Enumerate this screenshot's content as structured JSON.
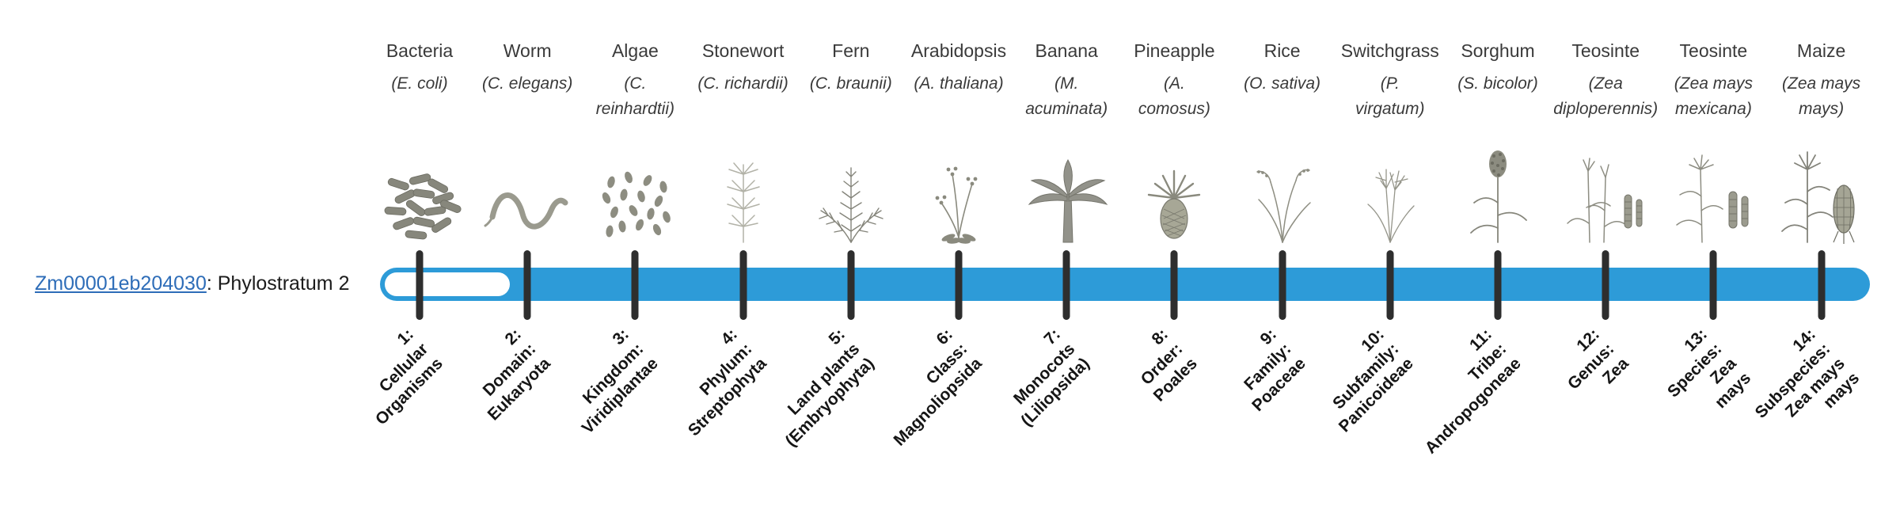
{
  "gene": {
    "id": "Zm00001eb204030",
    "suffix": ": Phylostratum 2",
    "phylostratum": 2
  },
  "bar": {
    "fill_color": "#2d9bd8",
    "tick_color": "#2e2e2e",
    "link_color": "#2e6db8",
    "unfilled_through_stratum": 1
  },
  "organisms": [
    {
      "common": "Bacteria",
      "scientific_lines": [
        "(E. coli)"
      ],
      "icon": "bacteria-icon",
      "rank_lines": [
        "1:",
        "Cellular",
        "Organisms"
      ]
    },
    {
      "common": "Worm",
      "scientific_lines": [
        "(C. elegans)"
      ],
      "icon": "worm-icon",
      "rank_lines": [
        "2:",
        "Domain:",
        "Eukaryota"
      ]
    },
    {
      "common": "Algae",
      "scientific_lines": [
        "(C.",
        "reinhardtii)"
      ],
      "icon": "algae-icon",
      "rank_lines": [
        "3:",
        "Kingdom:",
        "Viridiplantae"
      ]
    },
    {
      "common": "Stonewort",
      "scientific_lines": [
        "(C. richardii)"
      ],
      "icon": "stonewort-icon",
      "rank_lines": [
        "4:",
        "Phylum:",
        "Streptophyta"
      ]
    },
    {
      "common": "Fern",
      "scientific_lines": [
        "(C. braunii)"
      ],
      "icon": "fern-icon",
      "rank_lines": [
        "5:",
        "Land plants",
        "(Embryophyta)"
      ]
    },
    {
      "common": "Arabidopsis",
      "scientific_lines": [
        "(A. thaliana)"
      ],
      "icon": "arabidopsis-icon",
      "rank_lines": [
        "6:",
        "Class:",
        "Magnoliopsida"
      ]
    },
    {
      "common": "Banana",
      "scientific_lines": [
        "(M.",
        "acuminata)"
      ],
      "icon": "banana-icon",
      "rank_lines": [
        "7:",
        "Monocots",
        "(Liliopsida)"
      ]
    },
    {
      "common": "Pineapple",
      "scientific_lines": [
        "(A.",
        "comosus)"
      ],
      "icon": "pineapple-icon",
      "rank_lines": [
        "8:",
        "Order:",
        "Poales"
      ]
    },
    {
      "common": "Rice",
      "scientific_lines": [
        "(O. sativa)"
      ],
      "icon": "rice-icon",
      "rank_lines": [
        "9:",
        "Family:",
        "Poaceae"
      ]
    },
    {
      "common": "Switchgrass",
      "scientific_lines": [
        "(P.",
        "virgatum)"
      ],
      "icon": "switchgrass-icon",
      "rank_lines": [
        "10:",
        "Subfamily:",
        "Panicoideae"
      ]
    },
    {
      "common": "Sorghum",
      "scientific_lines": [
        "(S. bicolor)"
      ],
      "icon": "sorghum-icon",
      "rank_lines": [
        "11:",
        "Tribe:",
        "Andropogoneae"
      ]
    },
    {
      "common": "Teosinte",
      "scientific_lines": [
        "(Zea",
        "diploperennis)"
      ],
      "icon": "teosinte-diplo-icon",
      "rank_lines": [
        "12:",
        "Genus:",
        "Zea"
      ]
    },
    {
      "common": "Teosinte",
      "scientific_lines": [
        "(Zea mays",
        "mexicana)"
      ],
      "icon": "teosinte-mexicana-icon",
      "rank_lines": [
        "13:",
        "Species:",
        "Zea",
        "mays"
      ]
    },
    {
      "common": "Maize",
      "scientific_lines": [
        "(Zea mays",
        "mays)"
      ],
      "icon": "maize-icon",
      "rank_lines": [
        "14:",
        "Subspecies:",
        "Zea mays",
        "mays"
      ]
    }
  ]
}
